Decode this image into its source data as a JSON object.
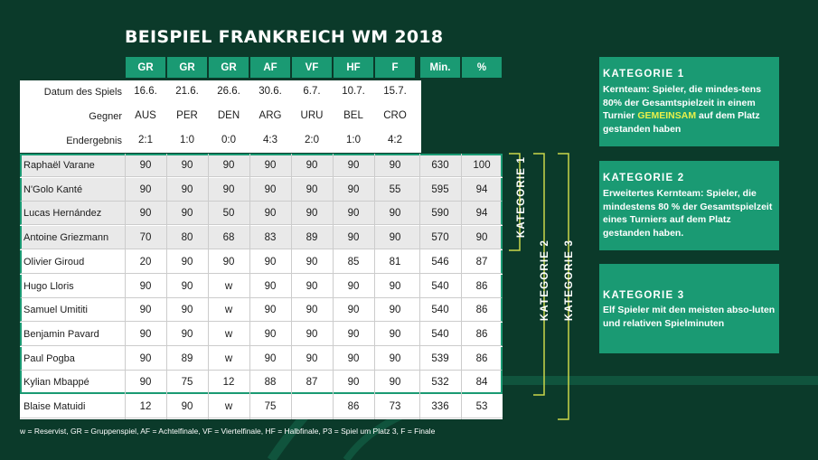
{
  "title": "BEISPIEL FRANKREICH WM 2018",
  "colors": {
    "background": "#0b3a2a",
    "accent": "#1a9a73",
    "highlight": "#e8f04a",
    "bracket": "#c9d64a",
    "row_shaded": "#e9e9e9"
  },
  "info_labels": [
    "Datum des Spiels",
    "Gegner",
    "Endergebnis"
  ],
  "chart_data": {
    "type": "table",
    "title": "BEISPIEL FRANKREICH WM 2018",
    "columns": [
      "GR",
      "GR",
      "GR",
      "AF",
      "VF",
      "HF",
      "F",
      "Min.",
      "%"
    ],
    "match_info": {
      "dates": [
        "16.6.",
        "21.6.",
        "26.6.",
        "30.6.",
        "6.7.",
        "10.7.",
        "15.7."
      ],
      "opponents": [
        "AUS",
        "PER",
        "DEN",
        "ARG",
        "URU",
        "BEL",
        "CRO"
      ],
      "results": [
        "2:1",
        "1:0",
        "0:0",
        "4:3",
        "2:0",
        "1:0",
        "4:2"
      ]
    },
    "rows": [
      {
        "name": "Raphaël Varane",
        "values": [
          "90",
          "90",
          "90",
          "90",
          "90",
          "90",
          "90",
          "630",
          "100"
        ],
        "shaded": true
      },
      {
        "name": "N'Golo Kanté",
        "values": [
          "90",
          "90",
          "90",
          "90",
          "90",
          "90",
          "55",
          "595",
          "94"
        ],
        "shaded": true
      },
      {
        "name": "Lucas Hernández",
        "values": [
          "90",
          "90",
          "50",
          "90",
          "90",
          "90",
          "90",
          "590",
          "94"
        ],
        "shaded": true
      },
      {
        "name": "Antoine Griezmann",
        "values": [
          "70",
          "80",
          "68",
          "83",
          "89",
          "90",
          "90",
          "570",
          "90"
        ],
        "shaded": true
      },
      {
        "name": "Olivier Giroud",
        "values": [
          "20",
          "90",
          "90",
          "90",
          "90",
          "85",
          "81",
          "546",
          "87"
        ],
        "shaded": false
      },
      {
        "name": "Hugo Lloris",
        "values": [
          "90",
          "90",
          "w",
          "90",
          "90",
          "90",
          "90",
          "540",
          "86"
        ],
        "shaded": false
      },
      {
        "name": "Samuel Umititi",
        "values": [
          "90",
          "90",
          "w",
          "90",
          "90",
          "90",
          "90",
          "540",
          "86"
        ],
        "shaded": false
      },
      {
        "name": "Benjamin Pavard",
        "values": [
          "90",
          "90",
          "w",
          "90",
          "90",
          "90",
          "90",
          "540",
          "86"
        ],
        "shaded": false
      },
      {
        "name": "Paul Pogba",
        "values": [
          "90",
          "89",
          "w",
          "90",
          "90",
          "90",
          "90",
          "539",
          "86"
        ],
        "shaded": false
      },
      {
        "name": "Kylian Mbappé",
        "values": [
          "90",
          "75",
          "12",
          "88",
          "87",
          "90",
          "90",
          "532",
          "84"
        ],
        "shaded": false
      },
      {
        "name": "Blaise Matuidi",
        "values": [
          "12",
          "90",
          "w",
          "75",
          "",
          "86",
          "73",
          "336",
          "53"
        ],
        "shaded": false
      }
    ]
  },
  "categories": [
    {
      "title": "KATEGORIE 1",
      "text_before": "Kernteam: Spieler, die mindes-tens 80% der Gesamtspielzeit in einem Turnier ",
      "text_highlight": "GEMEINSAM",
      "text_after": " auf dem Platz gestanden haben"
    },
    {
      "title": "KATEGORIE 2",
      "text_before": "Erweitertes Kernteam: Spieler, die mindestens 80 % der Gesamtspielzeit eines Turniers auf dem Platz gestanden haben.",
      "text_highlight": "",
      "text_after": ""
    },
    {
      "title": "KATEGORIE 3",
      "text_before": "Elf Spieler mit den meisten abso-luten und relativen Spielminuten",
      "text_highlight": "",
      "text_after": ""
    }
  ],
  "brackets": [
    "KATEGORIE 1",
    "KATEGORIE 2",
    "KATEGORIE 3"
  ],
  "footnote": "w = Reservist, GR = Gruppenspiel, AF = Achtelfinale, VF = Viertelfinale, HF = Halbfinale, P3 = Spiel um Platz 3, F = Finale"
}
